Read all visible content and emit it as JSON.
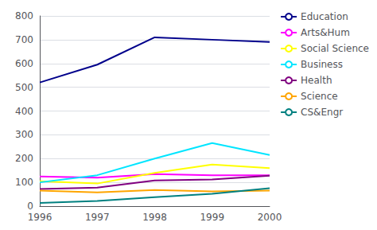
{
  "chart_data": {
    "type": "line",
    "x": [
      1996,
      1997,
      1998,
      1999,
      2000
    ],
    "series": [
      {
        "name": "Education",
        "color": "#00008b",
        "values": [
          520,
          595,
          710,
          700,
          690
        ]
      },
      {
        "name": "Arts&Hum",
        "color": "#ff00ff",
        "values": [
          125,
          120,
          135,
          130,
          130
        ]
      },
      {
        "name": "Social Science",
        "color": "#ffff00",
        "values": [
          105,
          95,
          140,
          175,
          160
        ]
      },
      {
        "name": "Business",
        "color": "#00e5ff",
        "values": [
          100,
          130,
          200,
          265,
          215
        ]
      },
      {
        "name": "Health",
        "color": "#800080",
        "values": [
          72,
          78,
          108,
          112,
          128
        ]
      },
      {
        "name": "Science",
        "color": "#ffa500",
        "values": [
          65,
          58,
          68,
          62,
          65
        ]
      },
      {
        "name": "CS&Engr",
        "color": "#008080",
        "values": [
          13,
          22,
          38,
          52,
          75
        ]
      }
    ],
    "xlim": [
      1996,
      2000
    ],
    "xticks": [
      1996,
      1997,
      1998,
      1999,
      2000
    ],
    "ylim": [
      0,
      800
    ],
    "yticks": [
      0,
      100,
      200,
      300,
      400,
      500,
      600,
      700,
      800
    ],
    "grid": true,
    "legend": "right"
  }
}
